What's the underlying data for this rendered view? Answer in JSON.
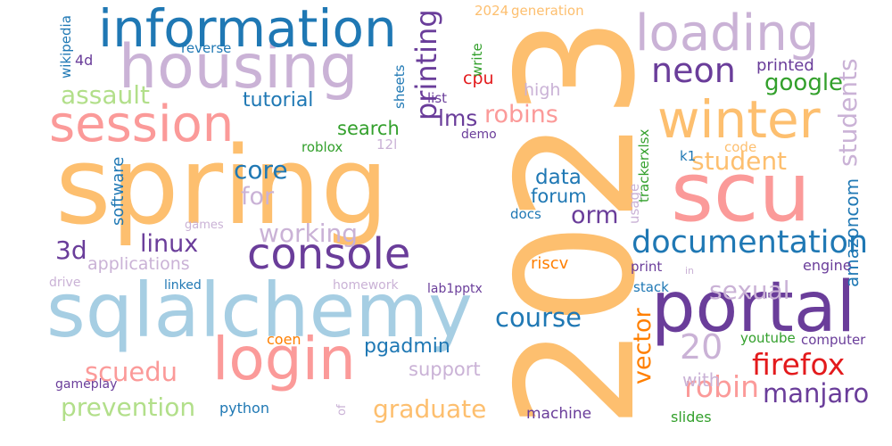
{
  "palette": {
    "orange_light": "#fdbf6f",
    "pink": "#fb9a99",
    "purple_light": "#cab2d6",
    "blue_light": "#a6cee3",
    "purple_dark": "#6a3d9a",
    "blue_dark": "#1f78b4",
    "green_light": "#b2df8a",
    "green_dark": "#33a02c",
    "red": "#e31a1c",
    "orange": "#ff7f00"
  },
  "words": [
    {
      "text": "2023",
      "color": "#fdbf6f"
    },
    {
      "text": "spring",
      "color": "#fdbf6f"
    },
    {
      "text": "scu",
      "color": "#fb9a99"
    },
    {
      "text": "sqlalchemy",
      "color": "#a6cee3"
    },
    {
      "text": "housing",
      "color": "#cab2d6"
    },
    {
      "text": "portal",
      "color": "#6a3d9a"
    },
    {
      "text": "information",
      "color": "#1f78b4"
    },
    {
      "text": "session",
      "color": "#fb9a99"
    },
    {
      "text": "login",
      "color": "#fb9a99"
    },
    {
      "text": "loading",
      "color": "#cab2d6"
    },
    {
      "text": "winter",
      "color": "#fdbf6f"
    },
    {
      "text": "console",
      "color": "#6a3d9a"
    },
    {
      "text": "documentation",
      "color": "#1f78b4"
    },
    {
      "text": "neon",
      "color": "#6a3d9a"
    },
    {
      "text": "firefox",
      "color": "#e31a1c"
    },
    {
      "text": "robin",
      "color": "#fb9a99"
    },
    {
      "text": "20",
      "color": "#cab2d6"
    },
    {
      "text": "manjaro",
      "color": "#6a3d9a"
    },
    {
      "text": "graduate",
      "color": "#fdbf6f"
    },
    {
      "text": "prevention",
      "color": "#b2df8a"
    },
    {
      "text": "scuedu",
      "color": "#fb9a99"
    },
    {
      "text": "course",
      "color": "#1f78b4"
    },
    {
      "text": "printing",
      "color": "#6a3d9a"
    },
    {
      "text": "student",
      "color": "#fdbf6f"
    },
    {
      "text": "students",
      "color": "#cab2d6"
    },
    {
      "text": "sexual",
      "color": "#cab2d6"
    },
    {
      "text": "assault",
      "color": "#b2df8a"
    },
    {
      "text": "robins",
      "color": "#fb9a99"
    },
    {
      "text": "google",
      "color": "#33a02c"
    },
    {
      "text": "core",
      "color": "#1f78b4"
    },
    {
      "text": "working",
      "color": "#cab2d6"
    },
    {
      "text": "3d",
      "color": "#6a3d9a"
    },
    {
      "text": "linux",
      "color": "#6a3d9a"
    },
    {
      "text": "applications",
      "color": "#cab2d6"
    },
    {
      "text": "vector",
      "color": "#ff7f00"
    },
    {
      "text": "orm",
      "color": "#6a3d9a"
    },
    {
      "text": "for",
      "color": "#cab2d6"
    },
    {
      "text": "tutorial",
      "color": "#1f78b4"
    },
    {
      "text": "lms",
      "color": "#6a3d9a"
    },
    {
      "text": "search",
      "color": "#33a02c"
    },
    {
      "text": "data",
      "color": "#1f78b4"
    },
    {
      "text": "forum",
      "color": "#1f78b4"
    },
    {
      "text": "pgadmin",
      "color": "#1f78b4"
    },
    {
      "text": "support",
      "color": "#cab2d6"
    },
    {
      "text": "amazoncom",
      "color": "#1f78b4"
    },
    {
      "text": "software",
      "color": "#1f78b4"
    },
    {
      "text": "with",
      "color": "#cab2d6"
    },
    {
      "text": "cpu",
      "color": "#e31a1c"
    },
    {
      "text": "high",
      "color": "#cab2d6"
    },
    {
      "text": "printed",
      "color": "#6a3d9a"
    },
    {
      "text": "engine",
      "color": "#6a3d9a"
    },
    {
      "text": "riscv",
      "color": "#ff7f00"
    },
    {
      "text": "machine",
      "color": "#6a3d9a"
    },
    {
      "text": "python",
      "color": "#1f78b4"
    },
    {
      "text": "computer",
      "color": "#6a3d9a"
    },
    {
      "text": "youtube",
      "color": "#33a02c"
    },
    {
      "text": "slides",
      "color": "#33a02c"
    },
    {
      "text": "print",
      "color": "#6a3d9a"
    },
    {
      "text": "in",
      "color": "#cab2d6"
    },
    {
      "text": "stack",
      "color": "#1f78b4"
    },
    {
      "text": "coen",
      "color": "#ff7f00"
    },
    {
      "text": "usage",
      "color": "#cab2d6"
    },
    {
      "text": "k1",
      "color": "#1f78b4"
    },
    {
      "text": "code",
      "color": "#fdbf6f"
    },
    {
      "text": "trackerxlsx",
      "color": "#33a02c"
    },
    {
      "text": "docs",
      "color": "#1f78b4"
    },
    {
      "text": "demo",
      "color": "#6a3d9a"
    },
    {
      "text": "roblox",
      "color": "#33a02c"
    },
    {
      "text": "12l",
      "color": "#cab2d6"
    },
    {
      "text": "sheets",
      "color": "#1f78b4"
    },
    {
      "text": "list",
      "color": "#6a3d9a"
    },
    {
      "text": "write",
      "color": "#33a02c"
    },
    {
      "text": "2024",
      "color": "#fdbf6f"
    },
    {
      "text": "generation",
      "color": "#fdbf6f"
    },
    {
      "text": "reverse",
      "color": "#1f78b4"
    },
    {
      "text": "4d",
      "color": "#6a3d9a"
    },
    {
      "text": "wikipedia",
      "color": "#1f78b4"
    },
    {
      "text": "games",
      "color": "#cab2d6"
    },
    {
      "text": "drive",
      "color": "#cab2d6"
    },
    {
      "text": "linked",
      "color": "#1f78b4"
    },
    {
      "text": "homework",
      "color": "#cab2d6"
    },
    {
      "text": "lab1pptx",
      "color": "#6a3d9a"
    },
    {
      "text": "gameplay",
      "color": "#6a3d9a"
    },
    {
      "text": "of",
      "color": "#cab2d6"
    }
  ]
}
